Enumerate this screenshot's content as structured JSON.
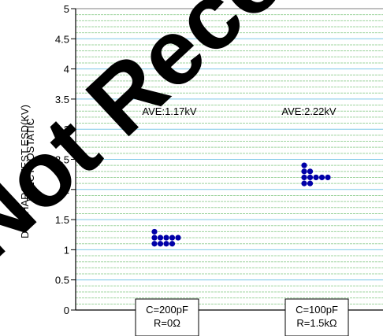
{
  "chart_data": {
    "type": "scatter",
    "ylabel_lines": [
      "ELECTROSTATIC",
      "DISCHARGE TEST ESD(KV)"
    ],
    "ylim": [
      0,
      5
    ],
    "y_ticks": [
      "0",
      "0.5",
      "1",
      "1.5",
      "2",
      "2.5",
      "3",
      "3.5",
      "4",
      "4.5",
      "5"
    ],
    "categories": [
      {
        "lines": [
          "C=200pF",
          "R=0Ω"
        ]
      },
      {
        "lines": [
          "C=100pF",
          "R=1.5kΩ"
        ]
      }
    ],
    "annotations": [
      "AVE:1.17kV",
      "AVE:2.22kV"
    ],
    "watermark": "Not Recommended for New Design",
    "colors": {
      "grid_major": "#7ec8e8",
      "grid_minor": "#9fd49f",
      "point": "#0000a8",
      "watermark": "#000000"
    },
    "series": [
      {
        "category_index": 0,
        "points": [
          {
            "y": 1.3,
            "offset": 0
          },
          {
            "y": 1.2,
            "offset": 0
          },
          {
            "y": 1.1,
            "offset": 0
          },
          {
            "y": 1.2,
            "offset": 1
          },
          {
            "y": 1.1,
            "offset": 1
          },
          {
            "y": 1.2,
            "offset": 2
          },
          {
            "y": 1.1,
            "offset": 2
          },
          {
            "y": 1.2,
            "offset": 3
          },
          {
            "y": 1.1,
            "offset": 3
          },
          {
            "y": 1.2,
            "offset": 4
          }
        ]
      },
      {
        "category_index": 1,
        "points": [
          {
            "y": 2.4,
            "offset": 0
          },
          {
            "y": 2.3,
            "offset": 0
          },
          {
            "y": 2.2,
            "offset": 0
          },
          {
            "y": 2.1,
            "offset": 0
          },
          {
            "y": 2.3,
            "offset": 1
          },
          {
            "y": 2.2,
            "offset": 1
          },
          {
            "y": 2.1,
            "offset": 1
          },
          {
            "y": 2.2,
            "offset": 2
          },
          {
            "y": 2.2,
            "offset": 3
          },
          {
            "y": 2.2,
            "offset": 4
          }
        ]
      }
    ]
  }
}
